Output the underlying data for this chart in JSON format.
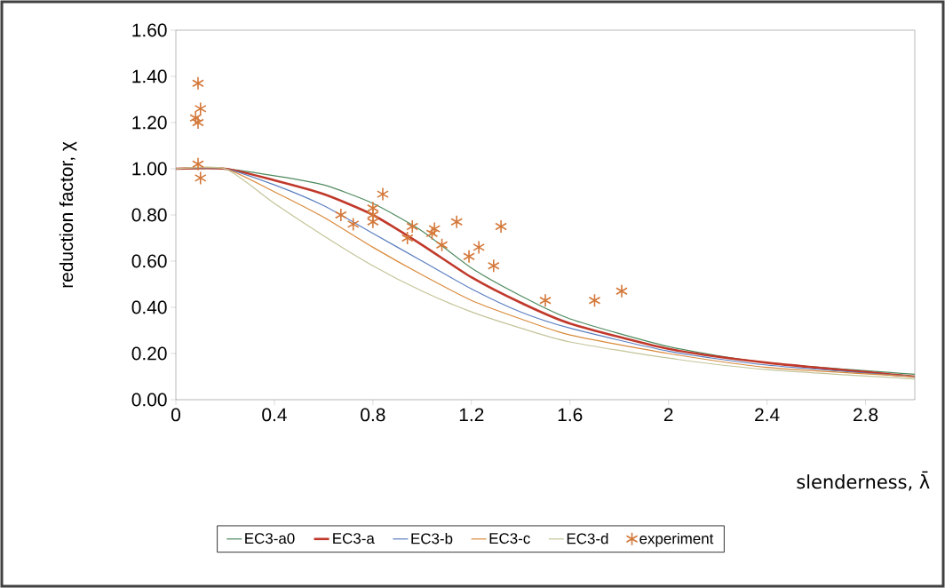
{
  "chart_data": {
    "type": "line",
    "xlabel": "slenderness, λ̄",
    "ylabel": "reduction factor, χ",
    "x": [
      0,
      0.2,
      0.4,
      0.6,
      0.8,
      1.0,
      1.2,
      1.4,
      1.6,
      2.0,
      2.4,
      3.0
    ],
    "series": [
      {
        "name": "EC3-a0",
        "color": "#4e8a5e",
        "marker": "none",
        "line_style": "solid",
        "values": [
          1.0,
          1.0,
          0.97,
          0.93,
          0.85,
          0.73,
          0.57,
          0.45,
          0.35,
          0.23,
          0.16,
          0.11
        ]
      },
      {
        "name": "EC3-a",
        "color": "#c0392b",
        "marker": "none",
        "line_style": "solid",
        "values": [
          1.0,
          1.0,
          0.95,
          0.89,
          0.8,
          0.67,
          0.53,
          0.42,
          0.33,
          0.22,
          0.16,
          0.1
        ]
      },
      {
        "name": "EC3-b",
        "color": "#5b7fc0",
        "marker": "none",
        "line_style": "solid",
        "values": [
          1.0,
          1.0,
          0.93,
          0.84,
          0.72,
          0.6,
          0.48,
          0.38,
          0.31,
          0.21,
          0.15,
          0.1
        ]
      },
      {
        "name": "EC3-c",
        "color": "#d98a3c",
        "marker": "none",
        "line_style": "solid",
        "values": [
          1.0,
          1.0,
          0.9,
          0.79,
          0.66,
          0.54,
          0.43,
          0.35,
          0.28,
          0.2,
          0.14,
          0.1
        ]
      },
      {
        "name": "EC3-d",
        "color": "#c4c49a",
        "marker": "none",
        "line_style": "solid",
        "values": [
          1.0,
          1.0,
          0.85,
          0.71,
          0.58,
          0.47,
          0.38,
          0.31,
          0.25,
          0.18,
          0.13,
          0.09
        ]
      },
      {
        "name": "experiment",
        "type": "scatter",
        "color": "#d4783a",
        "marker": "cross",
        "x": [
          0.09,
          0.1,
          0.08,
          0.09,
          0.09,
          0.1,
          0.67,
          0.72,
          0.8,
          0.8,
          0.8,
          0.84,
          0.96,
          0.94,
          1.05,
          1.04,
          1.08,
          1.14,
          1.19,
          1.23,
          1.29,
          1.32,
          1.5,
          1.7,
          1.81
        ],
        "values": [
          1.37,
          1.26,
          1.22,
          1.2,
          1.02,
          0.96,
          0.8,
          0.76,
          0.83,
          0.8,
          0.77,
          0.89,
          0.75,
          0.7,
          0.74,
          0.72,
          0.67,
          0.77,
          0.62,
          0.66,
          0.58,
          0.75,
          0.43,
          0.43,
          0.47
        ]
      }
    ],
    "xlim": [
      0,
      3.0
    ],
    "ylim": [
      0,
      1.6
    ],
    "xticks": [
      0,
      0.4,
      0.8,
      1.2,
      1.6,
      2,
      2.4,
      2.8
    ],
    "yticks": [
      {
        "value": 0,
        "label": "0.00"
      },
      {
        "value": 0.2,
        "label": "0.20"
      },
      {
        "value": 0.4,
        "label": "0.40"
      },
      {
        "value": 0.6,
        "label": "0.60"
      },
      {
        "value": 0.8,
        "label": "0.80"
      },
      {
        "value": 1.0,
        "label": "1.00"
      },
      {
        "value": 1.2,
        "label": "1.20"
      },
      {
        "value": 1.4,
        "label": "1.40"
      },
      {
        "value": 1.6,
        "label": "1.60"
      }
    ],
    "grid": false,
    "legend": "bottom"
  }
}
